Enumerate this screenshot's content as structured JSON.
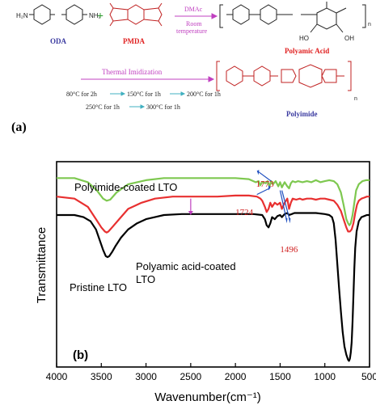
{
  "scheme": {
    "monomer_1": "ODA",
    "monomer_2": "PMDA",
    "plus_sign": "+",
    "arrow_1_top": "DMAc",
    "arrow_1_bottom_line1": "Room",
    "arrow_1_bottom_line2": "temperature",
    "intermediate": "Polyamic Acid",
    "arrow_2_label": "Thermal Imidization",
    "steps": [
      "80°C for 2h",
      "150°C for 1h",
      "200°C for 1h",
      "250°C for 1h",
      "300°C for 1h"
    ],
    "product": "Polyimide",
    "repeat_unit": "n",
    "repeat_unit_pa": "n",
    "amine_label": "H₂N",
    "amine_label_right": "NH₂",
    "oh_label_1": "HO",
    "oh_label_2": "OH",
    "panel_label": "(a)",
    "colors": {
      "oda": "#3a3aa0",
      "pmda": "#e02020",
      "arrow": "#c040c0",
      "product": "#3a3aa0",
      "green": "#7ec850",
      "red": "#e83030",
      "black": "#000000",
      "blue_arrow": "#2050c0"
    }
  },
  "chart_data": {
    "type": "line",
    "panel_label": "(b)",
    "xlabel": "Wavenumber(cm⁻¹)",
    "ylabel": "Transmittance",
    "xlim": [
      4000,
      500
    ],
    "x_ticks": [
      4000,
      3500,
      3000,
      2500,
      2000,
      1500,
      1000,
      500
    ],
    "y_ticks": [],
    "grid": false,
    "annotations": [
      {
        "text": "1773",
        "x": 1773
      },
      {
        "text": "1724",
        "x": 1724
      },
      {
        "text": "1496",
        "x": 1496
      }
    ],
    "series": [
      {
        "name": "Polyimide-coated LTO",
        "color": "#7ec850",
        "x": [
          4000,
          3800,
          3650,
          3550,
          3480,
          3440,
          3400,
          3330,
          3200,
          3000,
          2800,
          2500,
          2200,
          2000,
          1850,
          1773,
          1740,
          1724,
          1700,
          1660,
          1640,
          1620,
          1600,
          1580,
          1550,
          1520,
          1500,
          1480,
          1450,
          1420,
          1400,
          1380,
          1360,
          1330,
          1300,
          1250,
          1200,
          1150,
          1100,
          1050,
          1000,
          950,
          900,
          860,
          820,
          790,
          760,
          740,
          725,
          710,
          690,
          670,
          650,
          620,
          580,
          540,
          500
        ],
        "y": [
          0.92,
          0.92,
          0.9,
          0.86,
          0.82,
          0.81,
          0.815,
          0.85,
          0.89,
          0.91,
          0.92,
          0.92,
          0.92,
          0.92,
          0.915,
          0.9,
          0.905,
          0.885,
          0.9,
          0.895,
          0.905,
          0.88,
          0.905,
          0.89,
          0.905,
          0.88,
          0.9,
          0.875,
          0.9,
          0.88,
          0.87,
          0.895,
          0.905,
          0.9,
          0.905,
          0.9,
          0.905,
          0.9,
          0.91,
          0.9,
          0.905,
          0.91,
          0.905,
          0.89,
          0.85,
          0.79,
          0.72,
          0.7,
          0.69,
          0.7,
          0.74,
          0.8,
          0.86,
          0.89,
          0.905,
          0.91,
          0.91
        ]
      },
      {
        "name": "Polyamic acid-coated LTO",
        "color": "#e83030",
        "x": [
          4000,
          3800,
          3650,
          3560,
          3500,
          3460,
          3440,
          3420,
          3380,
          3300,
          3200,
          3050,
          2900,
          2700,
          2500,
          2200,
          2000,
          1850,
          1760,
          1720,
          1700,
          1670,
          1650,
          1630,
          1610,
          1590,
          1560,
          1530,
          1500,
          1480,
          1450,
          1420,
          1400,
          1380,
          1360,
          1320,
          1280,
          1250,
          1200,
          1150,
          1100,
          1050,
          1000,
          950,
          900,
          860,
          820,
          790,
          760,
          740,
          720,
          700,
          680,
          660,
          640,
          620,
          590,
          560,
          530,
          500
        ],
        "y": [
          0.83,
          0.82,
          0.78,
          0.72,
          0.68,
          0.66,
          0.655,
          0.66,
          0.68,
          0.72,
          0.77,
          0.8,
          0.82,
          0.83,
          0.83,
          0.83,
          0.835,
          0.835,
          0.83,
          0.82,
          0.81,
          0.78,
          0.755,
          0.77,
          0.8,
          0.78,
          0.8,
          0.79,
          0.8,
          0.77,
          0.8,
          0.82,
          0.77,
          0.8,
          0.82,
          0.815,
          0.82,
          0.815,
          0.82,
          0.82,
          0.815,
          0.82,
          0.82,
          0.815,
          0.81,
          0.79,
          0.76,
          0.72,
          0.68,
          0.66,
          0.66,
          0.67,
          0.7,
          0.75,
          0.79,
          0.81,
          0.82,
          0.825,
          0.83,
          0.83
        ]
      },
      {
        "name": "Pristine LTO",
        "color": "#000000",
        "x": [
          4000,
          3800,
          3700,
          3620,
          3560,
          3520,
          3480,
          3450,
          3430,
          3410,
          3380,
          3340,
          3280,
          3200,
          3100,
          3000,
          2900,
          2800,
          2600,
          2400,
          2200,
          2000,
          1800,
          1700,
          1670,
          1650,
          1630,
          1610,
          1590,
          1560,
          1530,
          1500,
          1480,
          1450,
          1420,
          1400,
          1370,
          1340,
          1300,
          1200,
          1100,
          1000,
          950,
          920,
          900,
          880,
          860,
          840,
          820,
          800,
          780,
          760,
          740,
          730,
          720,
          710,
          700,
          690,
          680,
          670,
          660,
          645,
          620,
          590,
          560,
          530,
          500
        ],
        "y": [
          0.74,
          0.74,
          0.73,
          0.71,
          0.67,
          0.62,
          0.57,
          0.54,
          0.535,
          0.54,
          0.56,
          0.59,
          0.63,
          0.67,
          0.7,
          0.72,
          0.73,
          0.74,
          0.745,
          0.745,
          0.745,
          0.745,
          0.745,
          0.74,
          0.72,
          0.69,
          0.68,
          0.7,
          0.73,
          0.72,
          0.735,
          0.74,
          0.73,
          0.745,
          0.75,
          0.74,
          0.745,
          0.75,
          0.75,
          0.75,
          0.75,
          0.745,
          0.74,
          0.73,
          0.7,
          0.62,
          0.5,
          0.38,
          0.27,
          0.17,
          0.1,
          0.06,
          0.035,
          0.03,
          0.04,
          0.07,
          0.12,
          0.22,
          0.35,
          0.48,
          0.58,
          0.66,
          0.71,
          0.73,
          0.735,
          0.74,
          0.74
        ]
      }
    ],
    "series_labels": [
      "Polyimide-coated LTO",
      "Polyamic acid-coated",
      "LTO",
      "Pristine LTO"
    ]
  }
}
